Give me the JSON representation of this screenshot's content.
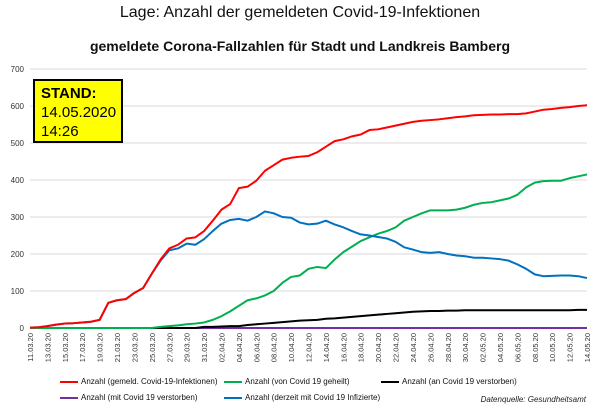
{
  "page_title": "Lage: Anzahl der gemeldeten Covid-19-Infektionen",
  "stand": {
    "label": "STAND:",
    "date": "14.05.2020",
    "time": "14:26"
  },
  "source": "Datenquelle: Gesundheitsamt",
  "colors": {
    "infections": "#ff0000",
    "recovered": "#00b050",
    "deaths": "#000000",
    "with_covid": "#7030a0",
    "current": "#0070c0",
    "stand_box": "#ffff00"
  },
  "chart_data": {
    "type": "line",
    "title": "gemeldete Corona-Fallzahlen für Stadt und Landkreis Bamberg",
    "xlabel": "",
    "ylabel": "",
    "ylim": [
      0,
      700
    ],
    "yticks": [
      0,
      100,
      200,
      300,
      400,
      500,
      600,
      700
    ],
    "grid": "horizontal",
    "legend_position": "bottom",
    "x": [
      "11.03.20",
      "12.03.20",
      "13.03.20",
      "14.03.20",
      "15.03.20",
      "16.03.20",
      "17.03.20",
      "18.03.20",
      "19.03.20",
      "20.03.20",
      "21.03.20",
      "22.03.20",
      "23.03.20",
      "24.03.20",
      "25.03.20",
      "26.03.20",
      "27.03.20",
      "28.03.20",
      "29.03.20",
      "30.03.20",
      "31.03.20",
      "01.04.20",
      "02.04.20",
      "03.04.20",
      "04.04.20",
      "05.04.20",
      "06.04.20",
      "07.04.20",
      "08.04.20",
      "09.04.20",
      "10.04.20",
      "11.04.20",
      "12.04.20",
      "13.04.20",
      "14.04.20",
      "15.04.20",
      "16.04.20",
      "17.04.20",
      "18.04.20",
      "19.04.20",
      "20.04.20",
      "21.04.20",
      "22.04.20",
      "23.04.20",
      "24.04.20",
      "25.04.20",
      "26.04.20",
      "27.04.20",
      "28.04.20",
      "29.04.20",
      "30.04.20",
      "01.05.20",
      "02.05.20",
      "03.05.20",
      "04.05.20",
      "05.05.20",
      "06.05.20",
      "07.05.20",
      "08.05.20",
      "09.05.20",
      "10.05.20",
      "11.05.20",
      "12.05.20",
      "13.05.20",
      "14.05.20"
    ],
    "series": [
      {
        "name": "Anzahl (gemeld. Covid-19-Infektionen)",
        "color": "#ff0000",
        "values": [
          1,
          2,
          5,
          9,
          12,
          13,
          15,
          17,
          22,
          68,
          75,
          78,
          95,
          108,
          147,
          185,
          215,
          225,
          242,
          245,
          262,
          290,
          320,
          335,
          378,
          382,
          398,
          425,
          440,
          455,
          460,
          463,
          465,
          475,
          490,
          505,
          510,
          518,
          523,
          535,
          537,
          542,
          547,
          552,
          557,
          560,
          562,
          564,
          567,
          570,
          572,
          575,
          576,
          577,
          577,
          578,
          578,
          580,
          585,
          590,
          592,
          595,
          597,
          600,
          602
        ]
      },
      {
        "name": "Anzahl (von Covid 19 geheilt)",
        "color": "#00b050",
        "values": [
          0,
          0,
          0,
          0,
          0,
          0,
          0,
          0,
          0,
          0,
          0,
          0,
          0,
          0,
          0,
          3,
          5,
          7,
          10,
          12,
          15,
          22,
          32,
          45,
          60,
          75,
          80,
          88,
          100,
          122,
          138,
          142,
          160,
          165,
          162,
          185,
          205,
          220,
          235,
          245,
          255,
          262,
          272,
          290,
          300,
          310,
          318,
          318,
          318,
          320,
          325,
          333,
          338,
          340,
          345,
          350,
          360,
          380,
          393,
          397,
          398,
          398,
          405,
          410,
          415
        ]
      },
      {
        "name": "Anzahl (an Covid 19 verstorben)",
        "color": "#000000",
        "values": [
          0,
          0,
          0,
          0,
          0,
          0,
          0,
          0,
          0,
          0,
          0,
          0,
          0,
          0,
          0,
          0,
          0,
          0,
          0,
          0,
          3,
          3,
          4,
          5,
          5,
          8,
          10,
          12,
          14,
          16,
          18,
          20,
          21,
          22,
          25,
          26,
          28,
          30,
          32,
          34,
          36,
          38,
          40,
          42,
          44,
          45,
          46,
          46,
          47,
          47,
          48,
          48,
          48,
          48,
          48,
          48,
          48,
          48,
          48,
          48,
          48,
          48,
          48,
          49,
          49
        ]
      },
      {
        "name": "Anzahl (mit Covid 19 verstorben)",
        "color": "#7030a0",
        "values": [
          0,
          0,
          0,
          0,
          0,
          0,
          0,
          0,
          0,
          0,
          0,
          0,
          0,
          0,
          0,
          0,
          0,
          0,
          0,
          0,
          0,
          0,
          0,
          0,
          0,
          0,
          0,
          0,
          0,
          0,
          0,
          0,
          0,
          0,
          0,
          0,
          0,
          0,
          0,
          0,
          0,
          0,
          0,
          0,
          0,
          0,
          0,
          0,
          0,
          0,
          0,
          0,
          0,
          0,
          0,
          0,
          0,
          0,
          0,
          0,
          0,
          0,
          0,
          0,
          0
        ]
      },
      {
        "name": "Anzahl (derzeit mit Covid 19 Infizierte)",
        "color": "#0070c0",
        "values": [
          1,
          2,
          5,
          9,
          12,
          13,
          15,
          17,
          22,
          68,
          75,
          78,
          95,
          108,
          147,
          182,
          210,
          215,
          228,
          225,
          240,
          262,
          282,
          292,
          295,
          290,
          300,
          315,
          310,
          300,
          298,
          285,
          280,
          282,
          290,
          280,
          272,
          262,
          253,
          250,
          246,
          242,
          233,
          218,
          212,
          205,
          203,
          205,
          200,
          196,
          194,
          190,
          190,
          188,
          186,
          182,
          172,
          160,
          145,
          140,
          141,
          142,
          142,
          140,
          135
        ]
      }
    ]
  }
}
